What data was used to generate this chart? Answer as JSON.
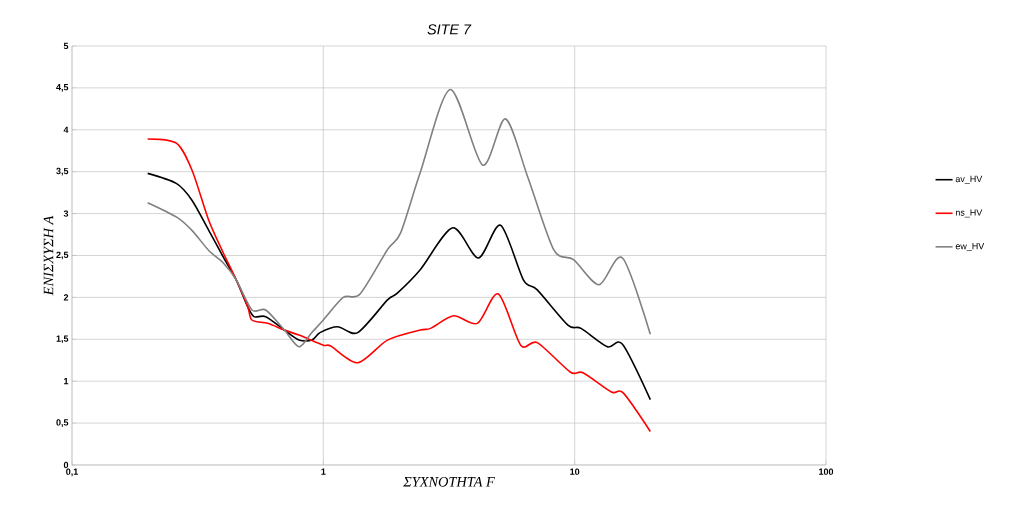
{
  "chart_data": {
    "type": "line",
    "title": "*SITE 7*",
    "xlabel": "ΣΥΧΝΟΤΗΤΑ F",
    "ylabel": "ΕΝΙΣΧΥΣΗ Α",
    "log": "x",
    "grid": true,
    "legend": "right",
    "marker": "none",
    "line_style": "solid",
    "xlim": [
      0.1,
      100
    ],
    "xticks": [
      {
        "value": 0.1,
        "label": "0,1"
      },
      1,
      10,
      100
    ],
    "ylim": [
      0,
      5
    ],
    "yticks": [
      0,
      {
        "value": 0.5,
        "label": "0,5"
      },
      1,
      {
        "value": 1.5,
        "label": "1,5"
      },
      2,
      {
        "value": 2.5,
        "label": "2,5"
      },
      3,
      {
        "value": 3.5,
        "label": "3,5"
      },
      4,
      {
        "value": 4.5,
        "label": "4,5"
      },
      5
    ],
    "series": [
      {
        "name": "av_HV",
        "color": "#000000",
        "x": [
          0.2,
          0.26,
          0.3,
          0.35,
          0.4,
          0.45,
          0.5,
          0.53,
          0.59,
          0.7,
          0.8,
          0.9,
          0.97,
          1.14,
          1.37,
          1.8,
          1.97,
          2.43,
          3.27,
          4.14,
          5.07,
          6.25,
          7.1,
          9.4,
          10.6,
          13.5,
          15.5,
          20
        ],
        "values": [
          3.48,
          3.36,
          3.16,
          2.8,
          2.48,
          2.21,
          1.89,
          1.77,
          1.77,
          1.61,
          1.49,
          1.49,
          1.58,
          1.65,
          1.58,
          1.97,
          2.05,
          2.33,
          2.83,
          2.47,
          2.86,
          2.21,
          2.09,
          1.67,
          1.63,
          1.41,
          1.44,
          0.78
        ]
      },
      {
        "name": "ns_HV",
        "color": "#ff0000",
        "x": [
          0.2,
          0.26,
          0.3,
          0.35,
          0.4,
          0.45,
          0.5,
          0.52,
          0.6,
          0.7,
          0.8,
          1.0,
          1.07,
          1.37,
          1.8,
          2.43,
          2.67,
          3.3,
          4.1,
          4.97,
          6.1,
          7.1,
          9.6,
          10.8,
          14,
          15.6,
          20
        ],
        "values": [
          3.89,
          3.84,
          3.52,
          2.92,
          2.53,
          2.21,
          1.89,
          1.73,
          1.69,
          1.61,
          1.55,
          1.43,
          1.42,
          1.22,
          1.49,
          1.61,
          1.63,
          1.78,
          1.69,
          2.04,
          1.43,
          1.46,
          1.11,
          1.1,
          0.87,
          0.86,
          0.4
        ]
      },
      {
        "name": "ew_HV",
        "color": "#808080",
        "x": [
          0.2,
          0.26,
          0.3,
          0.35,
          0.4,
          0.45,
          0.52,
          0.59,
          0.7,
          0.8,
          0.9,
          1.0,
          1.2,
          1.4,
          1.8,
          2.03,
          2.43,
          3.2,
          4.3,
          5.3,
          6.5,
          8.25,
          9.9,
          12.5,
          15.5,
          20
        ],
        "values": [
          3.13,
          2.96,
          2.8,
          2.56,
          2.41,
          2.21,
          1.85,
          1.85,
          1.61,
          1.41,
          1.58,
          1.73,
          2.0,
          2.04,
          2.57,
          2.77,
          3.49,
          4.48,
          3.58,
          4.13,
          3.44,
          2.57,
          2.45,
          2.15,
          2.47,
          1.56
        ]
      }
    ]
  }
}
